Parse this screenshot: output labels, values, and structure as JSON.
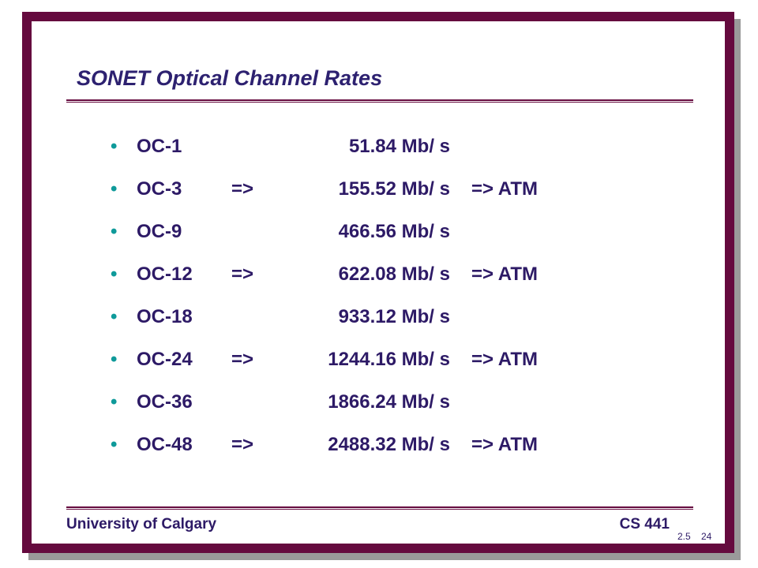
{
  "header": {
    "title": "SONET Optical Channel Rates"
  },
  "rows": [
    {
      "name": "OC-1",
      "rate": "51.84 Mb/ s"
    },
    {
      "name": "OC-3",
      "arrow": "=>",
      "rate": "155.52 Mb/ s",
      "note": "=> ATM"
    },
    {
      "name": "OC-9",
      "rate": "466.56 Mb/ s"
    },
    {
      "name": "OC-12",
      "arrow": "=>",
      "rate": "622.08 Mb/ s",
      "note": "=> ATM"
    },
    {
      "name": "OC-18",
      "rate": "933.12 Mb/ s"
    },
    {
      "name": "OC-24",
      "arrow": "=>",
      "rate": "1244.16 Mb/ s",
      "note": "=> ATM"
    },
    {
      "name": "OC-36",
      "rate": "1866.24 Mb/ s"
    },
    {
      "name": "OC-48",
      "arrow": "=>",
      "rate": "2488.32 Mb/ s",
      "note": "=> ATM"
    }
  ],
  "footer": {
    "left": "University of Calgary",
    "right": "CS 441",
    "section": "2.5",
    "page": "24"
  }
}
